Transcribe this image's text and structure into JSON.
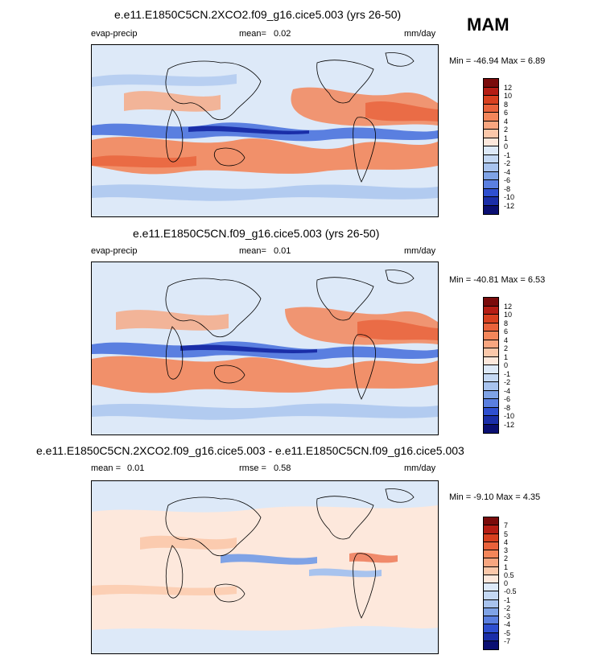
{
  "season": "MAM",
  "panels": [
    {
      "title": "e.e11.E1850C5CN.2XCO2.f09_g16.cice5.003 (yrs 26-50)",
      "left_label": "evap-precip",
      "mid_label": "mean=",
      "mid_value": "0.02",
      "units": "mm/day",
      "minmax": "Min = -46.94 Max =   6.89",
      "colorbar": {
        "levels": [
          "12",
          "10",
          "8",
          "6",
          "4",
          "2",
          "1",
          "0",
          "-1",
          "-2",
          "-4",
          "-6",
          "-8",
          "-10",
          "-12"
        ],
        "colors": [
          "#7a0b0b",
          "#b51d14",
          "#d8401f",
          "#e9623b",
          "#f3865a",
          "#f8a680",
          "#fbc8aa",
          "#fde8dc",
          "#dde9f8",
          "#c4d8f3",
          "#a8c3ee",
          "#7fa3e6",
          "#5a7fe0",
          "#2e4fd0",
          "#1a2ea8",
          "#0a0f72"
        ]
      }
    },
    {
      "title": "e.e11.E1850C5CN.f09_g16.cice5.003 (yrs 26-50)",
      "left_label": "evap-precip",
      "mid_label": "mean=",
      "mid_value": "0.01",
      "units": "mm/day",
      "minmax": "Min = -40.81 Max =   6.53",
      "colorbar": {
        "levels": [
          "12",
          "10",
          "8",
          "6",
          "4",
          "2",
          "1",
          "0",
          "-1",
          "-2",
          "-4",
          "-6",
          "-8",
          "-10",
          "-12"
        ],
        "colors": [
          "#7a0b0b",
          "#b51d14",
          "#d8401f",
          "#e9623b",
          "#f3865a",
          "#f8a680",
          "#fbc8aa",
          "#fde8dc",
          "#dde9f8",
          "#c4d8f3",
          "#a8c3ee",
          "#7fa3e6",
          "#5a7fe0",
          "#2e4fd0",
          "#1a2ea8",
          "#0a0f72"
        ]
      }
    },
    {
      "title": "e.e11.E1850C5CN.2XCO2.f09_g16.cice5.003 - e.e11.E1850C5CN.f09_g16.cice5.003",
      "left_label": "mean =",
      "left_value": "0.01",
      "mid_label": "rmse =",
      "mid_value": "0.58",
      "units": "mm/day",
      "minmax": "Min =  -9.10 Max =   4.35",
      "colorbar": {
        "levels": [
          "7",
          "5",
          "4",
          "3",
          "2",
          "1",
          "0.5",
          "0",
          "-0.5",
          "-1",
          "-2",
          "-3",
          "-4",
          "-5",
          "-7"
        ],
        "colors": [
          "#7a0b0b",
          "#b51d14",
          "#d8401f",
          "#e9623b",
          "#f3865a",
          "#f8a680",
          "#fbc8aa",
          "#fde8dc",
          "#dde9f8",
          "#c4d8f3",
          "#a8c3ee",
          "#7fa3e6",
          "#5a7fe0",
          "#2e4fd0",
          "#1a2ea8",
          "#0a0f72"
        ]
      }
    }
  ]
}
